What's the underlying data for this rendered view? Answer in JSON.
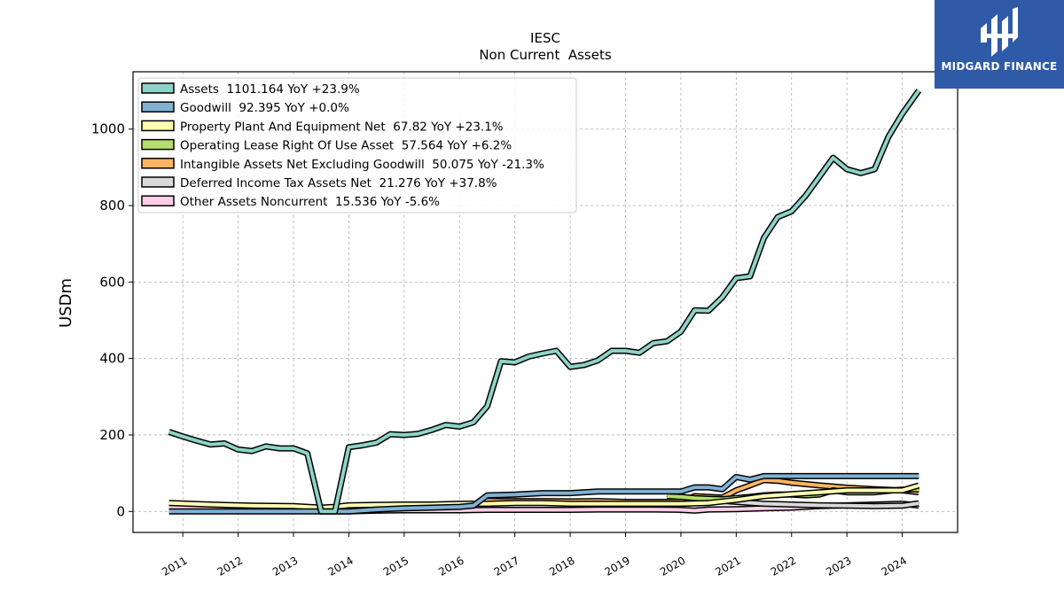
{
  "chart_data": {
    "type": "area",
    "title": "IESC",
    "subtitle": "Non Current  Assets",
    "ylabel": "USDm",
    "xlabel": "",
    "ylim": [
      -55,
      1150
    ],
    "xlim": [
      2010.1,
      2025.0
    ],
    "yticks": [
      0,
      200,
      400,
      600,
      800,
      1000
    ],
    "xticks": [
      "2011",
      "2012",
      "2013",
      "2014",
      "2015",
      "2016",
      "2017",
      "2018",
      "2019",
      "2020",
      "2021",
      "2022",
      "2023",
      "2024"
    ],
    "grid": true,
    "legend_position": "top-left",
    "series": [
      {
        "name": "Assets",
        "legend": "Assets  1101.164 YoY +23.9%",
        "color": "#8dd3c7",
        "x": [
          2010.75,
          2011.0,
          2011.25,
          2011.5,
          2011.75,
          2012.0,
          2012.25,
          2012.5,
          2012.75,
          2013.0,
          2013.25,
          2013.5,
          2013.75,
          2014.0,
          2014.25,
          2014.5,
          2014.75,
          2015.0,
          2015.25,
          2015.5,
          2015.75,
          2016.0,
          2016.25,
          2016.5,
          2016.75,
          2017.0,
          2017.25,
          2017.5,
          2017.75,
          2018.0,
          2018.25,
          2018.5,
          2018.75,
          2019.0,
          2019.25,
          2019.5,
          2019.75,
          2020.0,
          2020.25,
          2020.5,
          2020.75,
          2021.0,
          2021.25,
          2021.5,
          2021.75,
          2022.0,
          2022.25,
          2022.5,
          2022.75,
          2023.0,
          2023.25,
          2023.5,
          2023.75,
          2024.0,
          2024.3
        ],
        "values": [
          208,
          196,
          185,
          175,
          178,
          162,
          158,
          170,
          165,
          165,
          152,
          0,
          0,
          168,
          173,
          180,
          202,
          200,
          203,
          213,
          226,
          222,
          233,
          275,
          393,
          390,
          405,
          413,
          420,
          378,
          383,
          395,
          420,
          420,
          415,
          440,
          445,
          470,
          526,
          525,
          560,
          610,
          615,
          715,
          770,
          785,
          825,
          875,
          925,
          895,
          885,
          895,
          980,
          1040,
          1101.164
        ]
      },
      {
        "name": "Goodwill",
        "legend": "Goodwill  92.395 YoY +0.0%",
        "color": "#80b1d3",
        "x": [
          2010.75,
          2011.25,
          2011.75,
          2012.25,
          2012.75,
          2013.25,
          2013.5,
          2013.75,
          2014.0,
          2014.5,
          2015.0,
          2015.5,
          2016.0,
          2016.25,
          2016.5,
          2016.75,
          2017.0,
          2017.5,
          2018.0,
          2018.5,
          2019.0,
          2019.5,
          2020.0,
          2020.25,
          2020.5,
          2020.75,
          2021.0,
          2021.25,
          2021.5,
          2022.0,
          2022.5,
          2023.0,
          2023.5,
          2024.0,
          2024.3
        ],
        "values": [
          0,
          0,
          0,
          0,
          0,
          0,
          0,
          0,
          0,
          5,
          8,
          10,
          12,
          15,
          42,
          43,
          44,
          48,
          48,
          52,
          52,
          52,
          52,
          63,
          63,
          58,
          90,
          83,
          92.395,
          92.395,
          92.395,
          92.395,
          92.395,
          92.395,
          92.395
        ]
      },
      {
        "name": "Property Plant And Equipment Net",
        "legend": "Property Plant And Equipment Net  67.82 YoY +23.1%",
        "color": "#ffffb3",
        "x": [
          2010.75,
          2011.5,
          2012.25,
          2013.0,
          2013.5,
          2013.75,
          2014.0,
          2014.5,
          2015.0,
          2015.5,
          2016.0,
          2016.5,
          2017.0,
          2017.5,
          2018.0,
          2018.5,
          2019.0,
          2019.5,
          2020.0,
          2020.5,
          2021.0,
          2021.5,
          2022.0,
          2022.5,
          2023.0,
          2023.5,
          2024.0,
          2024.3
        ],
        "values": [
          22,
          18,
          15,
          14,
          10,
          12,
          16,
          17,
          18,
          18,
          20,
          20,
          22,
          22,
          20,
          20,
          20,
          20,
          20,
          22,
          30,
          40,
          45,
          50,
          55,
          55,
          55,
          67.82
        ]
      },
      {
        "name": "Operating Lease Right Of Use Asset",
        "legend": "Operating Lease Right Of Use Asset  57.564 YoY +6.2%",
        "color": "#b3de69",
        "x": [
          2019.75,
          2020.0,
          2020.25,
          2020.5,
          2020.75,
          2021.0,
          2021.25,
          2021.5,
          2021.75,
          2022.0,
          2022.25,
          2022.5,
          2022.75,
          2023.0,
          2023.25,
          2023.5,
          2023.75,
          2024.0,
          2024.3
        ],
        "values": [
          40,
          38,
          35,
          33,
          32,
          35,
          38,
          42,
          44,
          44,
          42,
          44,
          55,
          50,
          50,
          50,
          54,
          57,
          57.564
        ]
      },
      {
        "name": "Intangible Assets Net Excluding Goodwill",
        "legend": "Intangible Assets Net Excluding Goodwill  50.075 YoY -21.3%",
        "color": "#fdb462",
        "x": [
          2016.5,
          2016.75,
          2017.0,
          2017.5,
          2018.0,
          2018.5,
          2019.0,
          2019.5,
          2020.0,
          2020.25,
          2020.5,
          2020.75,
          2021.0,
          2021.25,
          2021.5,
          2021.75,
          2022.0,
          2022.5,
          2023.0,
          2023.5,
          2024.0,
          2024.3
        ],
        "values": [
          28,
          27,
          27,
          27,
          26,
          27,
          25,
          25,
          25,
          40,
          38,
          36,
          55,
          68,
          82,
          80,
          75,
          68,
          62,
          58,
          55,
          50.075
        ]
      },
      {
        "name": "Deferred Income Tax Assets Net",
        "legend": "Deferred Income Tax Assets Net  21.276 YoY +37.8%",
        "color": "#d9d9d9",
        "x": [
          2019.75,
          2020.0,
          2020.5,
          2021.0,
          2021.5,
          2022.0,
          2022.5,
          2023.0,
          2023.5,
          2024.0,
          2024.3
        ],
        "values": [
          45,
          38,
          30,
          25,
          20,
          18,
          16,
          15,
          14,
          15,
          21.276
        ]
      },
      {
        "name": "Other Assets Noncurrent",
        "legend": "Other Assets Noncurrent  15.536 YoY -5.6%",
        "color": "#fccde5",
        "x": [
          2010.75,
          2011.25,
          2011.75,
          2012.25,
          2012.75,
          2013.25,
          2013.5,
          2013.75,
          2014.0,
          2014.5,
          2015.0,
          2015.5,
          2016.0,
          2016.5,
          2017.0,
          2017.5,
          2018.0,
          2018.5,
          2019.0,
          2019.5,
          2020.0,
          2020.25,
          2020.5,
          2021.0,
          2021.5,
          2022.0,
          2022.5,
          2023.0,
          2023.5,
          2024.0,
          2024.3
        ],
        "values": [
          10,
          8,
          5,
          4,
          3,
          3,
          0,
          0,
          0,
          2,
          3,
          3,
          3,
          4,
          4,
          4,
          4,
          5,
          5,
          5,
          4,
          2,
          5,
          6,
          8,
          10,
          14,
          16,
          18,
          20,
          15.536
        ]
      }
    ]
  },
  "logo": {
    "text": "MIDGARD FINANCE",
    "color": "#2f5aa8",
    "icon": "midgard-logo-icon"
  }
}
